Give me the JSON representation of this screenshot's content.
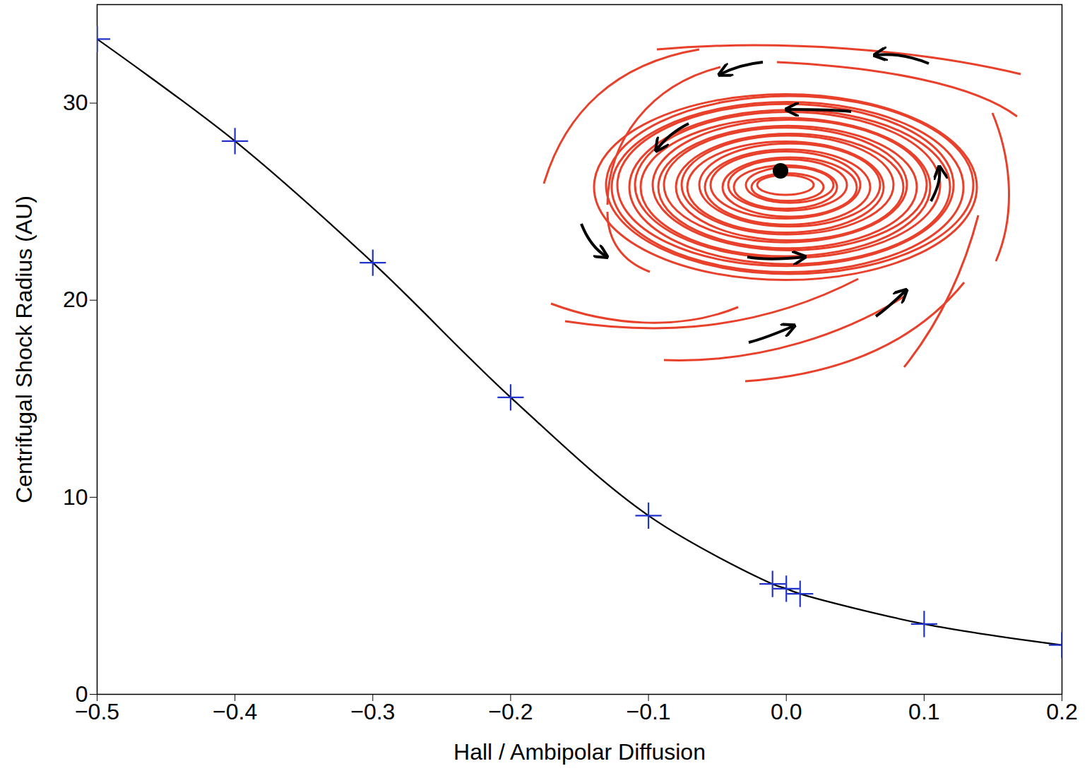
{
  "chart_data": {
    "type": "line",
    "x_label": "Hall / Ambipolar Diffusion",
    "y_label": "Centrifugal Shock Radius (AU)",
    "x": [
      -0.5,
      -0.4,
      -0.3,
      -0.2,
      -0.1,
      -0.01,
      0.0,
      0.01,
      0.1,
      0.2
    ],
    "series": [
      {
        "color": "#000000",
        "marker": "plus",
        "line_style": "solid",
        "values": [
          33.25,
          28.07,
          21.9,
          15.07,
          9.07,
          5.6,
          5.36,
          5.1,
          3.57,
          2.5
        ]
      }
    ],
    "xlim": [
      -0.5,
      0.2
    ],
    "xticks": [
      {
        "value": -0.5,
        "label": "−0.5"
      },
      {
        "value": -0.4,
        "label": "−0.4"
      },
      {
        "value": -0.3,
        "label": "−0.3"
      },
      {
        "value": -0.2,
        "label": "−0.2"
      },
      {
        "value": -0.1,
        "label": "−0.1"
      },
      {
        "value": 0,
        "label": "0.0"
      },
      {
        "value": 0.1,
        "label": "0.1"
      },
      {
        "value": 0.2,
        "label": "0.2"
      }
    ],
    "ylim": [
      0,
      35
    ],
    "yticks": [
      0,
      10,
      20,
      30
    ],
    "grid": false
  }
}
